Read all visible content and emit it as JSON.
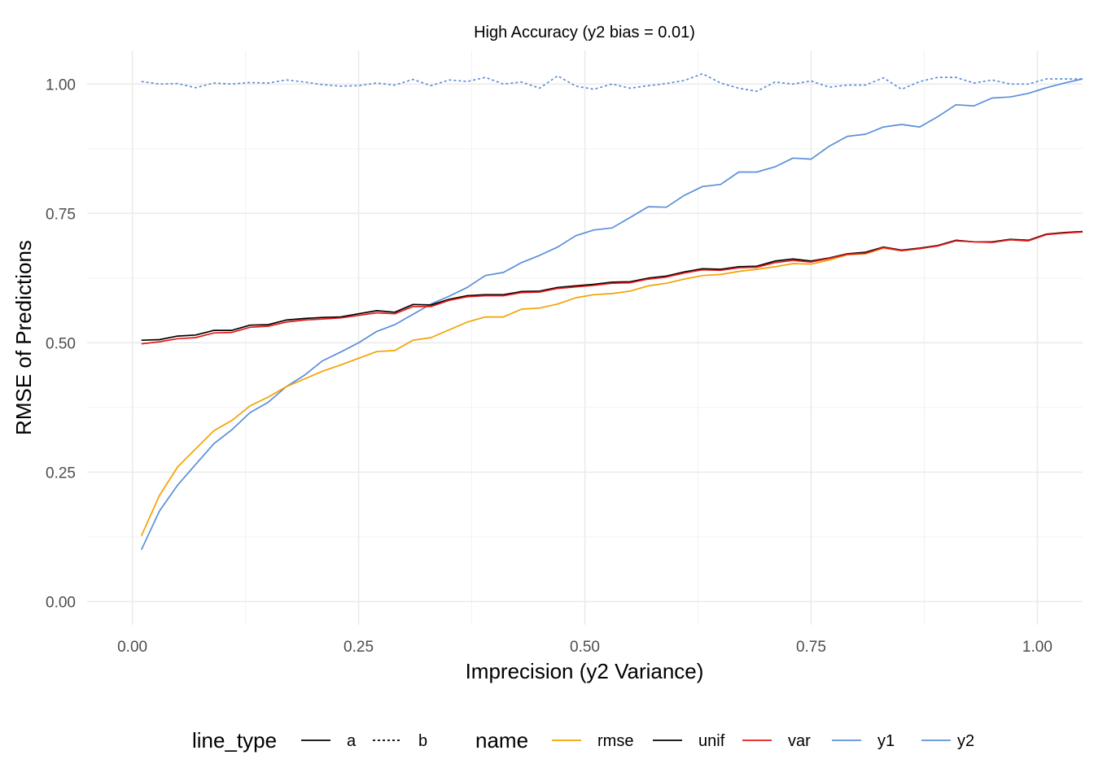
{
  "chart_data": {
    "type": "line",
    "title": "High Accuracy (y2 bias = 0.01)",
    "xlabel": "Imprecision (y2 Variance)",
    "ylabel": "RMSE of Predictions",
    "xlim": [
      -0.05,
      1.05
    ],
    "ylim": [
      -0.045,
      1.065
    ],
    "x_ticks": [
      0.0,
      0.25,
      0.5,
      0.75,
      1.0
    ],
    "x_tick_labels": [
      "0.00",
      "0.25",
      "0.50",
      "0.75",
      "1.00"
    ],
    "y_ticks": [
      0.0,
      0.25,
      0.5,
      0.75,
      1.0
    ],
    "y_tick_labels": [
      "0.00",
      "0.25",
      "0.50",
      "0.75",
      "1.00"
    ],
    "grid": true,
    "legend_placement": "bottom",
    "legends": [
      {
        "title": "line_type",
        "entries": [
          {
            "label": "a",
            "color": "#000000",
            "dash": "solid"
          },
          {
            "label": "b",
            "color": "#000000",
            "dash": "dotted"
          }
        ]
      },
      {
        "title": "name",
        "entries": [
          {
            "label": "rmse",
            "color": "#F5A100",
            "dash": "solid"
          },
          {
            "label": "unif",
            "color": "#000000",
            "dash": "solid"
          },
          {
            "label": "var",
            "color": "#E41A1C",
            "dash": "solid"
          },
          {
            "label": "y1",
            "color": "#5B8FD9",
            "dash": "solid"
          },
          {
            "label": "y2",
            "color": "#5B8FD9",
            "dash": "solid"
          }
        ]
      }
    ],
    "x": [
      0.01,
      0.03,
      0.05,
      0.07,
      0.09,
      0.11,
      0.13,
      0.15,
      0.17,
      0.19,
      0.21,
      0.23,
      0.25,
      0.27,
      0.29,
      0.31,
      0.33,
      0.35,
      0.37,
      0.39,
      0.41,
      0.43,
      0.45,
      0.47,
      0.49,
      0.51,
      0.53,
      0.55,
      0.57,
      0.59,
      0.61,
      0.63,
      0.65,
      0.67,
      0.69,
      0.71,
      0.73,
      0.75,
      0.77,
      0.79,
      0.81,
      0.83,
      0.85,
      0.87,
      0.89,
      0.91,
      0.93,
      0.95,
      0.97,
      0.99,
      1.01,
      1.03,
      1.05
    ],
    "series": [
      {
        "name": "y1",
        "line_type": "b",
        "color": "#5B8FD9",
        "values": [
          1.005,
          1.0,
          1.001,
          0.993,
          1.002,
          1.0,
          1.003,
          1.002,
          1.008,
          1.004,
          0.999,
          0.996,
          0.997,
          1.002,
          0.998,
          1.009,
          0.997,
          1.008,
          1.005,
          1.013,
          1.0,
          1.004,
          0.992,
          1.016,
          0.996,
          0.99,
          1.0,
          0.992,
          0.997,
          1.001,
          1.007,
          1.02,
          1.002,
          0.992,
          0.986,
          1.004,
          1.0,
          1.006,
          0.994,
          0.998,
          0.998,
          1.012,
          0.99,
          1.005,
          1.013,
          1.013,
          1.002,
          1.008,
          1.0,
          1.0,
          1.01,
          1.01,
          1.01
        ]
      },
      {
        "name": "y2",
        "line_type": "a",
        "color": "#5B8FD9",
        "values": [
          0.1,
          0.175,
          0.225,
          0.265,
          0.305,
          0.332,
          0.365,
          0.385,
          0.415,
          0.437,
          0.465,
          0.482,
          0.5,
          0.522,
          0.535,
          0.555,
          0.575,
          0.59,
          0.607,
          0.63,
          0.636,
          0.655,
          0.669,
          0.685,
          0.707,
          0.718,
          0.722,
          0.742,
          0.763,
          0.762,
          0.785,
          0.802,
          0.806,
          0.83,
          0.83,
          0.84,
          0.857,
          0.855,
          0.88,
          0.899,
          0.903,
          0.917,
          0.922,
          0.917,
          0.937,
          0.96,
          0.958,
          0.973,
          0.975,
          0.982,
          0.993,
          1.002,
          1.01
        ]
      },
      {
        "name": "rmse",
        "line_type": "a",
        "color": "#F5A100",
        "values": [
          0.127,
          0.205,
          0.26,
          0.295,
          0.33,
          0.35,
          0.378,
          0.395,
          0.415,
          0.43,
          0.445,
          0.457,
          0.47,
          0.483,
          0.485,
          0.505,
          0.51,
          0.525,
          0.54,
          0.55,
          0.55,
          0.565,
          0.567,
          0.575,
          0.587,
          0.593,
          0.595,
          0.6,
          0.61,
          0.615,
          0.623,
          0.63,
          0.632,
          0.638,
          0.642,
          0.647,
          0.653,
          0.652,
          0.66,
          0.67,
          0.672,
          0.683,
          0.678,
          0.682,
          0.688,
          0.698,
          0.695,
          0.695,
          0.7,
          0.698,
          0.71,
          0.713,
          0.715
        ]
      },
      {
        "name": "unif",
        "line_type": "a",
        "color": "#000000",
        "values": [
          0.505,
          0.506,
          0.513,
          0.515,
          0.524,
          0.524,
          0.534,
          0.535,
          0.544,
          0.547,
          0.549,
          0.55,
          0.556,
          0.562,
          0.559,
          0.574,
          0.573,
          0.584,
          0.591,
          0.593,
          0.593,
          0.599,
          0.6,
          0.607,
          0.61,
          0.613,
          0.617,
          0.618,
          0.625,
          0.629,
          0.637,
          0.643,
          0.642,
          0.647,
          0.648,
          0.658,
          0.662,
          0.658,
          0.664,
          0.672,
          0.675,
          0.685,
          0.679,
          0.683,
          0.688,
          0.698,
          0.695,
          0.695,
          0.7,
          0.698,
          0.71,
          0.713,
          0.715
        ]
      },
      {
        "name": "var",
        "line_type": "a",
        "color": "#E41A1C",
        "values": [
          0.498,
          0.502,
          0.508,
          0.51,
          0.519,
          0.52,
          0.53,
          0.532,
          0.54,
          0.544,
          0.546,
          0.548,
          0.553,
          0.558,
          0.556,
          0.57,
          0.57,
          0.582,
          0.589,
          0.591,
          0.591,
          0.597,
          0.598,
          0.605,
          0.608,
          0.611,
          0.615,
          0.616,
          0.623,
          0.627,
          0.635,
          0.641,
          0.64,
          0.645,
          0.646,
          0.655,
          0.659,
          0.656,
          0.663,
          0.671,
          0.673,
          0.684,
          0.678,
          0.682,
          0.687,
          0.697,
          0.695,
          0.694,
          0.699,
          0.697,
          0.709,
          0.712,
          0.714
        ]
      }
    ]
  }
}
